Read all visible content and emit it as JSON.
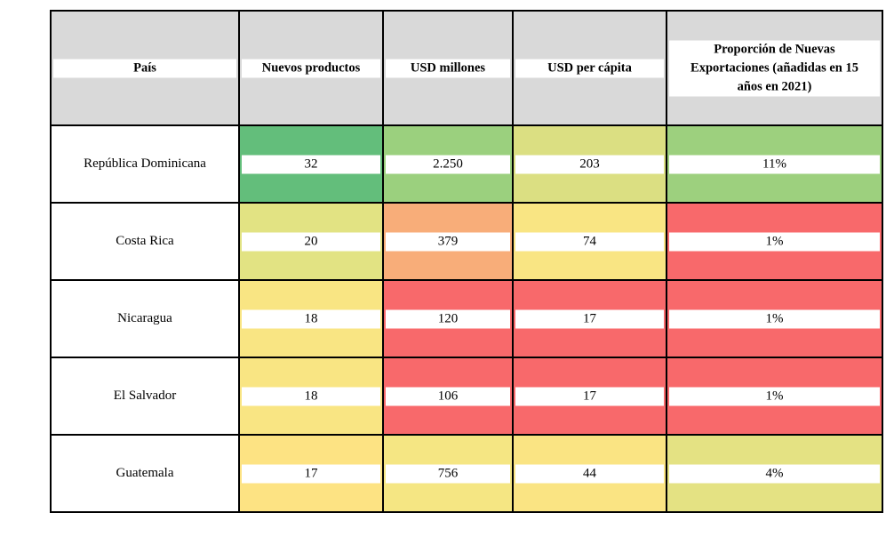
{
  "chart_data": {
    "type": "table",
    "columns": [
      "País",
      "Nuevos productos",
      "USD millones",
      "USD per cápita",
      "Proporción de Nuevas Exportaciones (añadidas en 15 años en 2021)"
    ],
    "rows": [
      {
        "country": "República Dominicana",
        "values": [
          "32",
          "2.250",
          "203",
          "11%"
        ],
        "colors": [
          "#63be7b",
          "#9bd07e",
          "#dbdf82",
          "#9dd07e"
        ]
      },
      {
        "country": "Costa Rica",
        "values": [
          "20",
          "379",
          "74",
          "1%"
        ],
        "colors": [
          "#e2e383",
          "#f8ad79",
          "#f9e583",
          "#f8696b"
        ]
      },
      {
        "country": "Nicaragua",
        "values": [
          "18",
          "120",
          "17",
          "1%"
        ],
        "colors": [
          "#f9e583",
          "#f8696b",
          "#f8696b",
          "#f8696b"
        ]
      },
      {
        "country": "El Salvador",
        "values": [
          "18",
          "106",
          "17",
          "1%"
        ],
        "colors": [
          "#f9e583",
          "#f8696b",
          "#f8696b",
          "#f8696b"
        ]
      },
      {
        "country": "Guatemala",
        "values": [
          "17",
          "756",
          "44",
          "4%"
        ],
        "colors": [
          "#fde383",
          "#f5e683",
          "#fae483",
          "#e4e283"
        ]
      }
    ],
    "header_lines_col5": [
      "Proporción de Nuevas",
      "Exportaciones (añadidas en 15",
      "años en 2021)"
    ]
  }
}
